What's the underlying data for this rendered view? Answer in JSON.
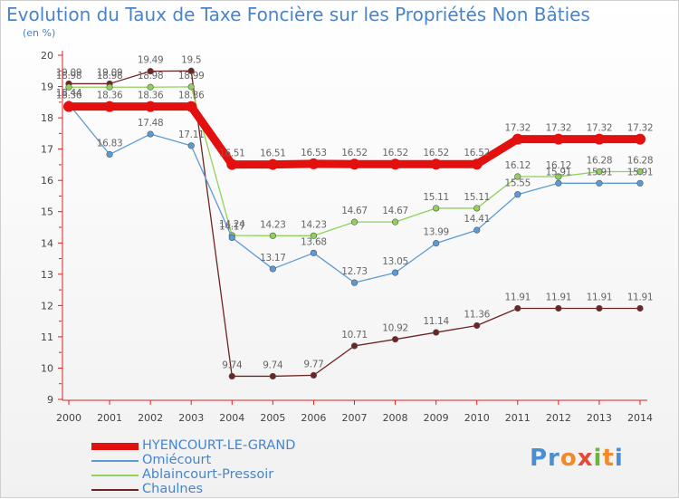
{
  "title": "Evolution du Taux de Taxe Foncière sur les Propriétés Non Bâties",
  "unit_label": "(en %)",
  "logo_text": "Proxiti",
  "chart_data": {
    "type": "line",
    "title": "Evolution du Taux de Taxe Foncière sur les Propriétés Non Bâties",
    "ylabel": "(en %)",
    "xlabel": "",
    "x": [
      "2000",
      "2001",
      "2002",
      "2003",
      "2004",
      "2005",
      "2006",
      "2007",
      "2008",
      "2009",
      "2010",
      "2011",
      "2012",
      "2013",
      "2014"
    ],
    "ylim": [
      9,
      20
    ],
    "yticks": [
      9,
      10,
      11,
      12,
      13,
      14,
      15,
      16,
      17,
      18,
      19,
      20
    ],
    "grid": false,
    "legend_position": "bottom-left",
    "series": [
      {
        "name": "HYENCOURT-LE-GRAND",
        "color": "#e31010",
        "values": [
          18.36,
          18.36,
          18.36,
          18.36,
          16.51,
          16.51,
          16.53,
          16.52,
          16.52,
          16.52,
          16.52,
          17.32,
          17.32,
          17.32,
          17.32
        ]
      },
      {
        "name": "Omiécourt",
        "color": "#5b9bd5",
        "values": [
          18.44,
          16.83,
          17.48,
          17.11,
          14.17,
          13.17,
          13.68,
          12.73,
          13.05,
          13.99,
          14.41,
          15.55,
          15.91,
          15.91,
          15.91
        ]
      },
      {
        "name": "Ablaincourt-Pressoir",
        "color": "#8fd15a",
        "values": [
          18.98,
          18.98,
          18.98,
          18.99,
          14.24,
          14.23,
          14.23,
          14.67,
          14.67,
          15.11,
          15.11,
          16.12,
          16.12,
          16.28,
          16.28
        ]
      },
      {
        "name": "Chaulnes",
        "color": "#6e2424",
        "values": [
          19.09,
          19.09,
          19.49,
          19.5,
          9.74,
          9.74,
          9.77,
          10.71,
          10.92,
          11.14,
          11.36,
          11.91,
          11.91,
          11.91,
          11.91
        ]
      }
    ]
  }
}
